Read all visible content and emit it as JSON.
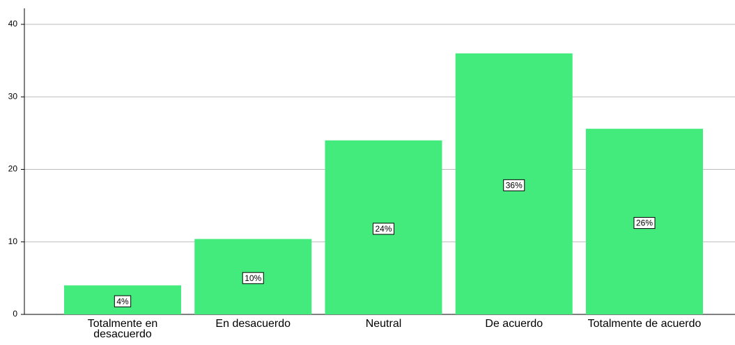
{
  "chart_data": {
    "type": "bar",
    "categories": [
      "Totalmente en desacuerdo",
      "En desacuerdo",
      "Neutral",
      "De acuerdo",
      "Totalmente de acuerdo"
    ],
    "values": [
      4,
      10.4,
      24,
      36,
      25.6
    ],
    "value_labels": [
      "4%",
      "10%",
      "24%",
      "36%",
      "26%"
    ],
    "color": "#43eb7d",
    "ylim": [
      0,
      40
    ],
    "yticks": [
      0,
      10,
      20,
      30,
      40
    ],
    "grid": true
  }
}
